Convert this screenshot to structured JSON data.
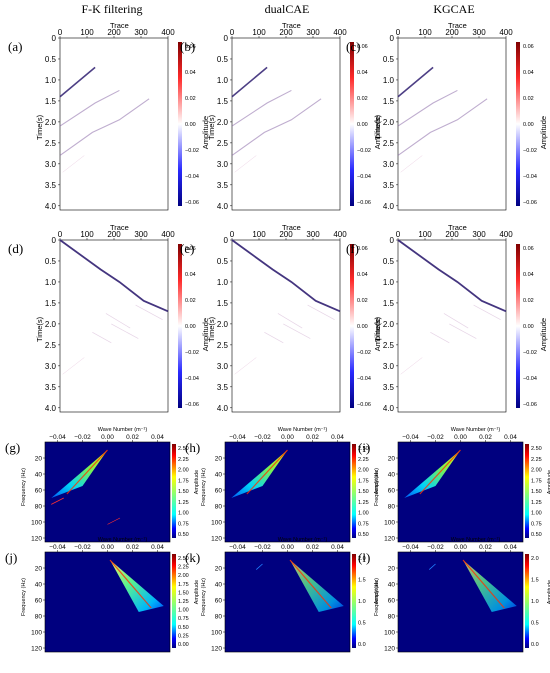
{
  "columns": [
    "F-K filtering",
    "dualCAE",
    "KGCAE"
  ],
  "panel_labels": {
    "row1": [
      "(a)",
      "(b)",
      "(c)"
    ],
    "row2": [
      "(d)",
      "(e)",
      "(f)"
    ],
    "row3": [
      "(g)",
      "(h)",
      "(i)"
    ],
    "row4": [
      "(j)",
      "(k)",
      "(l)"
    ]
  },
  "chart_data": [
    {
      "type": "heatmap",
      "rows": "top two rows of panels (a)-(f)",
      "xlabel": "Trace",
      "ylabel": "Time(s)",
      "colorbar_label": "Amplitude",
      "x_ticks": [
        "0",
        "100",
        "200",
        "300",
        "400"
      ],
      "y_ticks": [
        "0",
        "0.5",
        "1.0",
        "1.5",
        "2.0",
        "2.5",
        "3.0",
        "3.5",
        "4.0"
      ],
      "colorbar_ticks": [
        "0.06",
        "0.04",
        "0.02",
        "0.00",
        "−0.02",
        "−0.04",
        "−0.06"
      ],
      "xlim": [
        0,
        400
      ],
      "ylim": [
        0,
        4.1
      ],
      "colormap": "seismic (blue-white-red)",
      "events_row1": [
        {
          "x": [
            0,
            130
          ],
          "t": [
            1.4,
            0.7
          ]
        },
        {
          "x": [
            0,
            130,
            220
          ],
          "t": [
            2.1,
            1.55,
            1.25
          ]
        },
        {
          "x": [
            0,
            120,
            220,
            330
          ],
          "t": [
            2.8,
            2.25,
            1.95,
            1.45
          ]
        }
      ],
      "events_row2": [
        {
          "x": [
            0,
            150,
            220,
            310,
            405
          ],
          "t": [
            0.0,
            0.7,
            1.0,
            1.45,
            1.7
          ]
        },
        {
          "x": [
            280,
            380
          ],
          "t": [
            1.55,
            1.9
          ]
        },
        {
          "x": [
            170,
            260
          ],
          "t": [
            1.75,
            2.1
          ]
        },
        {
          "x": [
            120,
            190
          ],
          "t": [
            2.2,
            2.45
          ]
        },
        {
          "x": [
            190,
            290
          ],
          "t": [
            2.0,
            2.35
          ]
        }
      ]
    },
    {
      "type": "heatmap",
      "rows": "bottom two rows of panels (g)-(l)",
      "xlabel": "Wave Number (m⁻¹)",
      "ylabel": "Frequency (Hz)",
      "colorbar_label": "Amplitude",
      "x_ticks": [
        "−0.04",
        "−0.02",
        "0.00",
        "0.02",
        "0.04"
      ],
      "y_ticks": [
        "20",
        "40",
        "60",
        "80",
        "100",
        "120"
      ],
      "xlim": [
        -0.05,
        0.05
      ],
      "ylim": [
        0,
        125
      ],
      "colormap": "jet",
      "colorbar_ticks_row3": [
        "2.50",
        "2.25",
        "2.00",
        "1.75",
        "1.50",
        "1.25",
        "1.00",
        "0.75",
        "0.50"
      ],
      "colorbar_ticks_row4": [
        [
          "2.50",
          "2.25",
          "2.00",
          "1.75",
          "1.50",
          "1.25",
          "1.00",
          "0.75",
          "0.50",
          "0.25",
          "0.00"
        ],
        [
          "2.0",
          "1.5",
          "1.0",
          "0.5",
          "0.0"
        ],
        [
          "2.0",
          "1.5",
          "1.0",
          "0.5",
          "0.0"
        ]
      ],
      "row3_energy_wedge": {
        "apex_k": 0.0,
        "apex_f": 10,
        "spread_k": [
          -0.045,
          -0.02
        ],
        "spread_f": 70
      },
      "row4_energy_wedge": {
        "apex_k": 0.0,
        "apex_f": 10,
        "spread_k": [
          0.025,
          0.045
        ],
        "spread_f": 75
      }
    }
  ]
}
